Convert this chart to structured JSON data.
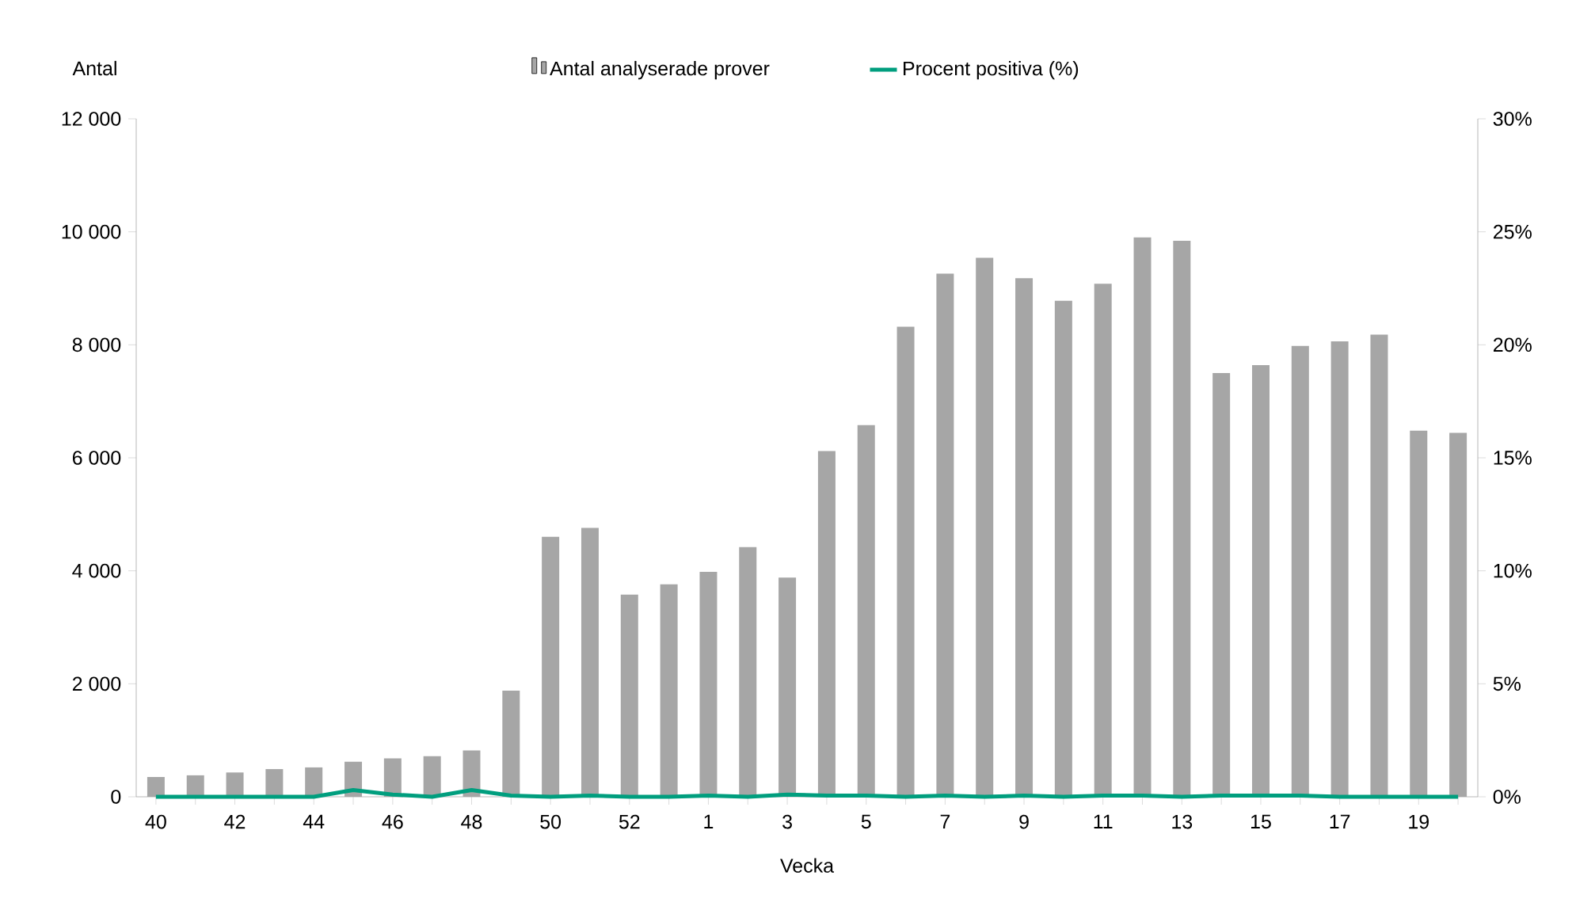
{
  "chart_data": {
    "type": "bar",
    "xlabel": "Vecka",
    "ylabel": "Antal",
    "categories": [
      "40",
      null,
      "42",
      null,
      "44",
      null,
      "46",
      null,
      "48",
      null,
      "50",
      null,
      "52",
      null,
      "1",
      null,
      "3",
      null,
      "5",
      null,
      "7",
      null,
      "9",
      null,
      "11",
      null,
      "13",
      null,
      "15",
      null,
      "17",
      null,
      "19",
      null
    ],
    "series": [
      {
        "name": "Antal analyserade prover",
        "color": "#a6a6a6",
        "values": [
          350,
          380,
          430,
          490,
          520,
          620,
          680,
          720,
          820,
          1880,
          4600,
          4760,
          3580,
          3760,
          3980,
          4420,
          3880,
          6120,
          6580,
          8320,
          9260,
          9540,
          9180,
          8780,
          9080,
          9900,
          9840,
          7500,
          7640,
          7980,
          8060,
          8180,
          6480,
          6440
        ]
      },
      {
        "name": "Procent positiva (%)",
        "type": "line",
        "axis": "y2",
        "color": "#009e7e",
        "values": [
          0,
          0,
          0,
          0,
          0,
          0.3,
          0.1,
          0,
          0.3,
          0.05,
          0,
          0.05,
          0,
          0,
          0.05,
          0,
          0.1,
          0.05,
          0.05,
          0,
          0.05,
          0,
          0.05,
          0,
          0.05,
          0.05,
          0,
          0.05,
          0.05,
          0.05,
          0,
          0,
          0,
          0
        ]
      }
    ],
    "ylim": [
      0,
      12000
    ],
    "yticks": [
      0,
      {
        "value": 2000,
        "label": "2 000"
      },
      {
        "value": 4000,
        "label": "4 000"
      },
      {
        "value": 6000,
        "label": "6 000"
      },
      {
        "value": 8000,
        "label": "8 000"
      },
      {
        "value": 10000,
        "label": "10 000"
      },
      {
        "value": 12000,
        "label": "12 000"
      }
    ],
    "y2lim": [
      0,
      30
    ],
    "y2ticks": [
      {
        "value": 0,
        "label": "0%"
      },
      {
        "value": 5,
        "label": "5%"
      },
      {
        "value": 10,
        "label": "10%"
      },
      {
        "value": 15,
        "label": "15%"
      },
      {
        "value": 20,
        "label": "20%"
      },
      {
        "value": 25,
        "label": "25%"
      },
      {
        "value": 30,
        "label": "30%"
      }
    ],
    "legend": "top",
    "grid": false
  }
}
